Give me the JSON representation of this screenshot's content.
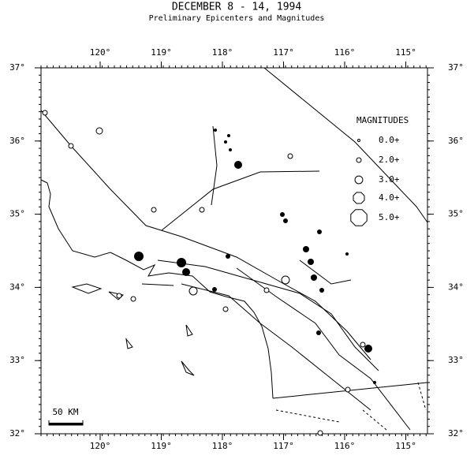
{
  "header": {
    "title": "DECEMBER 8 - 14, 1994",
    "subtitle": "Preliminary Epicenters and Magnitudes"
  },
  "map": {
    "lon_ticks": [
      {
        "value": 120,
        "label": "120°"
      },
      {
        "value": 119,
        "label": "119°"
      },
      {
        "value": 118,
        "label": "118°"
      },
      {
        "value": 117,
        "label": "117°"
      },
      {
        "value": 116,
        "label": "116°"
      },
      {
        "value": 115,
        "label": "115°"
      }
    ],
    "lat_ticks": [
      {
        "value": 37,
        "label": "37°"
      },
      {
        "value": 36,
        "label": "36°"
      },
      {
        "value": 35,
        "label": "35°"
      },
      {
        "value": 34,
        "label": "34°"
      },
      {
        "value": 33,
        "label": "33°"
      },
      {
        "value": 32,
        "label": "32°"
      }
    ],
    "scale_label": "50 KM"
  },
  "legend": {
    "title": "MAGNITUDES",
    "items": [
      {
        "value": 0,
        "label": "0.0+"
      },
      {
        "value": 2,
        "label": "2.0+"
      },
      {
        "value": 3,
        "label": "3.0+"
      },
      {
        "value": 4,
        "label": "4.0+"
      },
      {
        "value": 5,
        "label": "5.0+"
      }
    ]
  }
}
